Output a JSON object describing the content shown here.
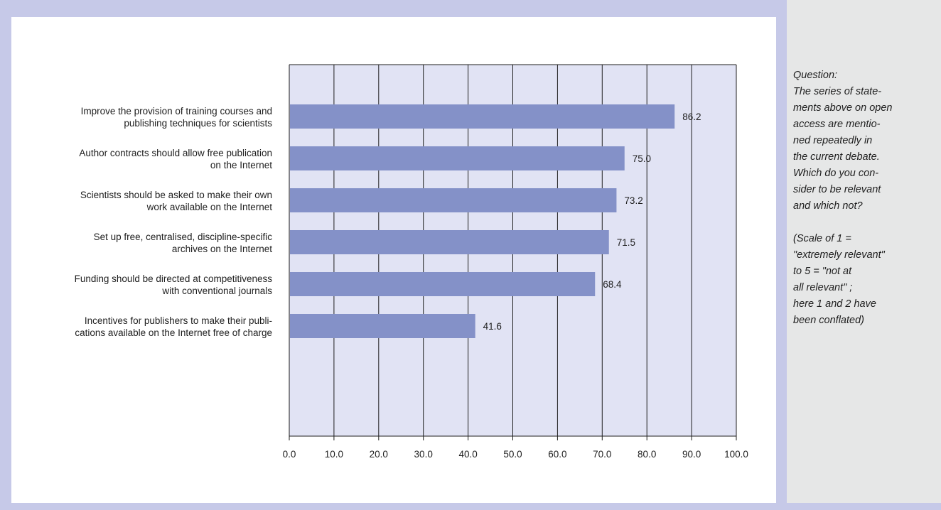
{
  "colors": {
    "frame": "#c6c9e8",
    "plot_background": "#e1e3f4",
    "bar": "#8491c8",
    "sidebar_background": "#e6e7e7",
    "gridline": "#1e1e1e"
  },
  "sidebar": {
    "question_text": "Question:\nThe series of state-\nments above on open\naccess are mentio-\nned repeatedly in\nthe current debate.\nWhich do you con-\nsider to be relevant\nand which not?\n\n(Scale of 1 =\n\"extremely relevant\"\nto 5 = \"not at\nall relevant\" ;\nhere 1 and 2 have\nbeen conflated)"
  },
  "chart_data": {
    "type": "bar",
    "orientation": "horizontal",
    "title": "",
    "xlabel": "",
    "ylabel": "",
    "xlim": [
      0,
      100
    ],
    "grid": true,
    "x_ticks": [
      "0.0",
      "10.0",
      "20.0",
      "30.0",
      "40.0",
      "50.0",
      "60.0",
      "70.0",
      "80.0",
      "90.0",
      "100.0"
    ],
    "categories": [
      [
        "Improve the provision of training courses and",
        "publishing techniques for scientists"
      ],
      [
        "Author contracts should allow free publication",
        "on the Internet"
      ],
      [
        "Scientists should be asked to make their own",
        "work available on the Internet"
      ],
      [
        "Set up free, centralised, discipline-specific",
        "archives on the Internet"
      ],
      [
        "Funding should be directed at competitiveness",
        "with conventional journals"
      ],
      [
        "Incentives for publishers to make their publi-",
        "cations available on the Internet free of charge"
      ]
    ],
    "values": [
      86.2,
      75.0,
      73.2,
      71.5,
      68.4,
      41.6
    ],
    "value_labels": [
      "86.2",
      "75.0",
      "73.2",
      "71.5",
      "68.4",
      "41.6"
    ]
  }
}
